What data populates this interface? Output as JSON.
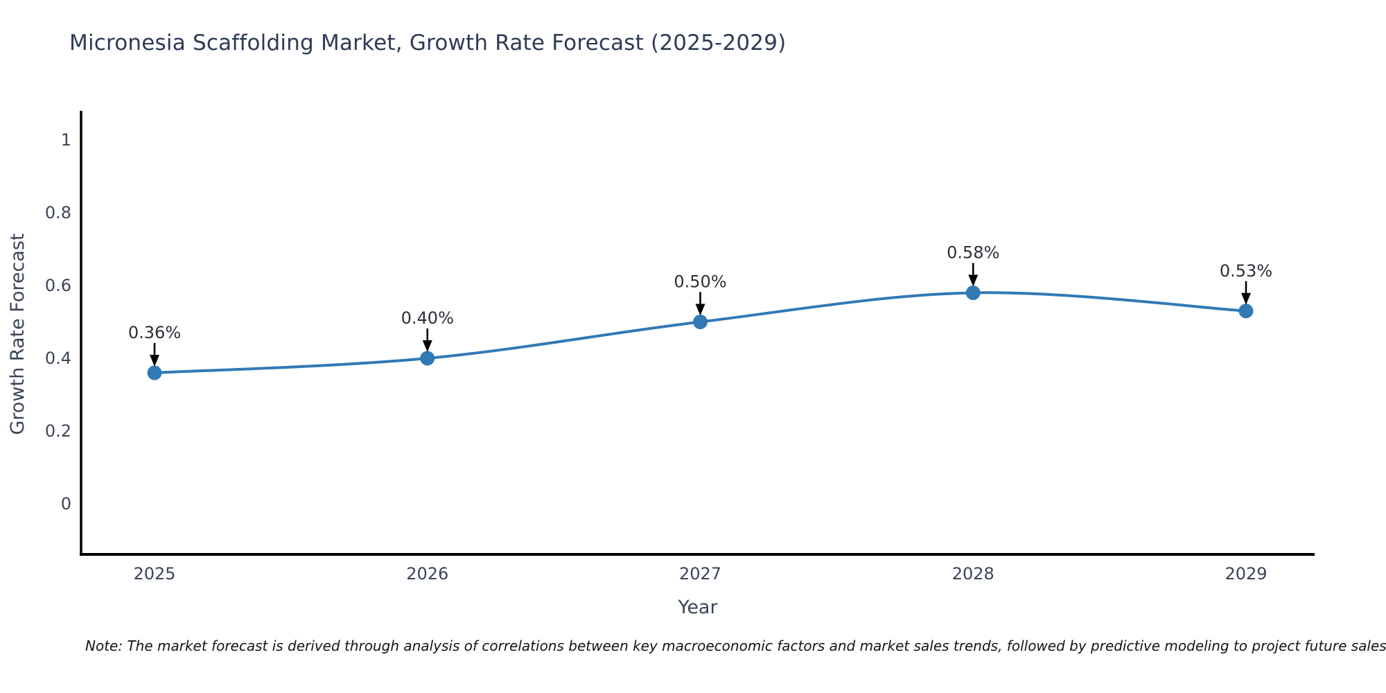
{
  "note": {
    "text": "Note: The market forecast is derived through analysis of correlations between key macroeconomic factors and market sales trends, followed by predictive modeling to project future sales"
  },
  "chart_data": {
    "type": "line",
    "title": "Micronesia Scaffolding Market, Growth Rate Forecast (2025-2029)",
    "xlabel": "Year",
    "ylabel": "Growth Rate Forecast",
    "x": [
      2025,
      2026,
      2027,
      2028,
      2029
    ],
    "series": [
      {
        "name": "Growth Rate Forecast",
        "values": [
          0.36,
          0.4,
          0.5,
          0.58,
          0.53
        ],
        "labels": [
          "0.36%",
          "0.40%",
          "0.50%",
          "0.58%",
          "0.53%"
        ]
      }
    ],
    "xtick_labels": [
      "2025",
      "2026",
      "2027",
      "2028",
      "2029"
    ],
    "yticks": [
      0,
      0.2,
      0.4,
      0.6,
      0.8,
      1
    ],
    "ytick_labels": [
      "0",
      "0.2",
      "0.4",
      "0.6",
      "0.8",
      "1"
    ],
    "xlim": [
      2024.73,
      2029.25
    ],
    "ylim": [
      -0.14,
      1.08
    ],
    "grid": false,
    "legend": "none",
    "line_color": "#3179b5",
    "marker_color": "#3179b5",
    "annotation_color": "#2b2f36",
    "arrow_color": "#000000",
    "axis_color": "#000000"
  }
}
